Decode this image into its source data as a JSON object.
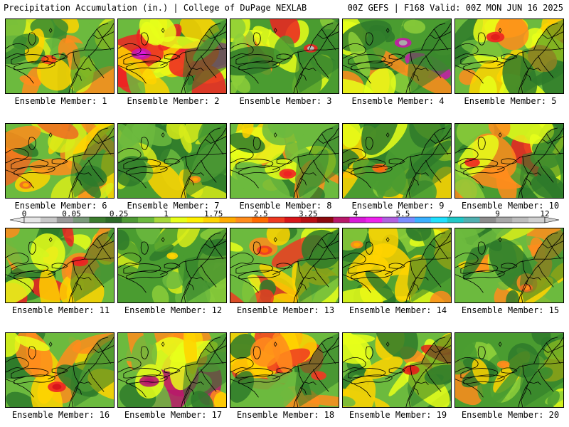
{
  "header": {
    "left": "Precipitation Accumulation (in.) | College of DuPage NEXLAB",
    "right": "00Z GEFS | F168 Valid: 00Z MON JUN 16 2025"
  },
  "panels": [
    {
      "label": "Ensemble Member: 1",
      "palette": [
        "#3a8a2e",
        "#6cba3e",
        "#d8ec1a",
        "#ffd400",
        "#ff8c1c",
        "#ee3a22"
      ],
      "wetness": 0.55,
      "max_blob": {
        "color": "#ff6a00",
        "strength": 0.7
      }
    },
    {
      "label": "Ensemble Member: 2",
      "palette": [
        "#2e7a2a",
        "#6cba3e",
        "#e8ff1a",
        "#ffd400",
        "#ee2222",
        "#c81aaa"
      ],
      "wetness": 0.75,
      "max_blob": {
        "color": "#d81ad8",
        "strength": 1.0
      }
    },
    {
      "label": "Ensemble Member: 3",
      "palette": [
        "#2e7a2a",
        "#4a9c30",
        "#8cce3a",
        "#e8ff1a",
        "#ff8c1c",
        "#ee2222"
      ],
      "wetness": 0.5,
      "max_blob": {
        "color": "#bdbdbd",
        "strength": 0.6
      }
    },
    {
      "label": "Ensemble Member: 4",
      "palette": [
        "#2e7a2a",
        "#4a9c30",
        "#8cce3a",
        "#e8ff1a",
        "#ff8c1c",
        "#c81aaa"
      ],
      "wetness": 0.55,
      "max_blob": {
        "color": "#aaaaaa",
        "strength": 0.8
      }
    },
    {
      "label": "Ensemble Member: 5",
      "palette": [
        "#2e7a2a",
        "#6cba3e",
        "#e8ff1a",
        "#ffd400",
        "#ff8c1c",
        "#ee2222"
      ],
      "wetness": 0.7,
      "max_blob": {
        "color": "#e0201a",
        "strength": 0.9
      }
    },
    {
      "label": "Ensemble Member: 6",
      "palette": [
        "#2e7a2a",
        "#6cba3e",
        "#d8ec1a",
        "#ffd400",
        "#ff8c1c",
        "#ee6a22"
      ],
      "wetness": 0.55,
      "max_blob": {
        "color": "#ffab00",
        "strength": 0.5
      }
    },
    {
      "label": "Ensemble Member: 7",
      "palette": [
        "#2e7a2a",
        "#4a9c30",
        "#6cba3e",
        "#d8ec1a",
        "#ffd400",
        "#ff8c1c"
      ],
      "wetness": 0.45,
      "max_blob": {
        "color": "#ffab00",
        "strength": 0.4
      }
    },
    {
      "label": "Ensemble Member: 8",
      "palette": [
        "#2e7a2a",
        "#6cba3e",
        "#e8ff1a",
        "#ffd400",
        "#ff8c1c",
        "#ee2222"
      ],
      "wetness": 0.7,
      "max_blob": {
        "color": "#ee2222",
        "strength": 0.8
      }
    },
    {
      "label": "Ensemble Member: 9",
      "palette": [
        "#2e7a2a",
        "#4a9c30",
        "#8cce3a",
        "#e8ff1a",
        "#ffd400",
        "#ff6a1c"
      ],
      "wetness": 0.55,
      "max_blob": {
        "color": "#ff6a00",
        "strength": 0.7
      }
    },
    {
      "label": "Ensemble Member: 10",
      "palette": [
        "#2e7a2a",
        "#4a9c30",
        "#8cce3a",
        "#e8ff1a",
        "#ff8c1c",
        "#ee2222"
      ],
      "wetness": 0.55,
      "max_blob": {
        "color": "#ee3a22",
        "strength": 0.7
      }
    },
    {
      "label": "Ensemble Member: 11",
      "palette": [
        "#2e7a2a",
        "#6cba3e",
        "#e8ff1a",
        "#ffd400",
        "#ff8c1c",
        "#ee2222"
      ],
      "wetness": 0.6,
      "max_blob": {
        "color": "#ee2222",
        "strength": 0.8
      }
    },
    {
      "label": "Ensemble Member: 12",
      "palette": [
        "#2e7a2a",
        "#4a9c30",
        "#6cba3e",
        "#8cce3a",
        "#d8ec1a",
        "#ffd400"
      ],
      "wetness": 0.4,
      "max_blob": {
        "color": "#ffd400",
        "strength": 0.4
      }
    },
    {
      "label": "Ensemble Member: 13",
      "palette": [
        "#2e7a2a",
        "#6cba3e",
        "#e8ff1a",
        "#ffd400",
        "#ff8c1c",
        "#ee3a22"
      ],
      "wetness": 0.6,
      "max_blob": {
        "color": "#ff6a00",
        "strength": 0.7
      }
    },
    {
      "label": "Ensemble Member: 14",
      "palette": [
        "#2e7a2a",
        "#4a9c30",
        "#8cce3a",
        "#e8ff1a",
        "#ffd400",
        "#ff8c1c"
      ],
      "wetness": 0.5,
      "max_blob": {
        "color": "#ffab00",
        "strength": 0.5
      }
    },
    {
      "label": "Ensemble Member: 15",
      "palette": [
        "#2e7a2a",
        "#6cba3e",
        "#d8ec1a",
        "#ffd400",
        "#ff8c1c",
        "#ee6a22"
      ],
      "wetness": 0.55,
      "max_blob": {
        "color": "#ff8c1c",
        "strength": 0.5
      }
    },
    {
      "label": "Ensemble Member: 16",
      "palette": [
        "#2e7a2a",
        "#6cba3e",
        "#e8ff1a",
        "#ffd400",
        "#ff8c1c",
        "#ee2222"
      ],
      "wetness": 0.6,
      "max_blob": {
        "color": "#d8161a",
        "strength": 0.9
      }
    },
    {
      "label": "Ensemble Member: 17",
      "palette": [
        "#2e7a2a",
        "#6cba3e",
        "#e8ff1a",
        "#ffd400",
        "#ff8c1c",
        "#b8186a"
      ],
      "wetness": 0.65,
      "max_blob": {
        "color": "#b8186a",
        "strength": 1.0
      }
    },
    {
      "label": "Ensemble Member: 18",
      "palette": [
        "#2e7a2a",
        "#6cba3e",
        "#e8ff1a",
        "#ffd400",
        "#ff8c1c",
        "#ee3a22"
      ],
      "wetness": 0.65,
      "max_blob": {
        "color": "#ee3a22",
        "strength": 0.7
      }
    },
    {
      "label": "Ensemble Member: 19",
      "palette": [
        "#2e7a2a",
        "#6cba3e",
        "#e8ff1a",
        "#ffd400",
        "#ff8c1c",
        "#e0201a"
      ],
      "wetness": 0.7,
      "max_blob": {
        "color": "#e0201a",
        "strength": 0.8
      }
    },
    {
      "label": "Ensemble Member: 20",
      "palette": [
        "#2e7a2a",
        "#4a9c30",
        "#8cce3a",
        "#e8ff1a",
        "#ffd400",
        "#ff8c1c"
      ],
      "wetness": 0.55,
      "max_blob": {
        "color": "#ff8c1c",
        "strength": 0.5
      }
    }
  ],
  "colorbar": {
    "tick_labels": [
      "0",
      "0.05",
      "0.25",
      "1",
      "1.75",
      "2.5",
      "3.25",
      "4",
      "5.5",
      "7",
      "9",
      "12"
    ],
    "colors": [
      "#e6e6e6",
      "#c8c8c8",
      "#9a9a9a",
      "#7a9a7a",
      "#3c7d2e",
      "#2e6a28",
      "#4f9a35",
      "#6cba3e",
      "#a8d83a",
      "#e8ff1a",
      "#fff000",
      "#ffd400",
      "#ffab00",
      "#ff8c1c",
      "#ff6a00",
      "#ee3a22",
      "#d8161a",
      "#b81014",
      "#8c0a0e",
      "#b8186a",
      "#d81ad8",
      "#ee22ee",
      "#b060e0",
      "#7a8cff",
      "#3ab0ff",
      "#20e0ff",
      "#20c8c8",
      "#50b0b0",
      "#8c8c8c",
      "#a8a8a8",
      "#bdbdbd",
      "#d0d0d0"
    ]
  }
}
